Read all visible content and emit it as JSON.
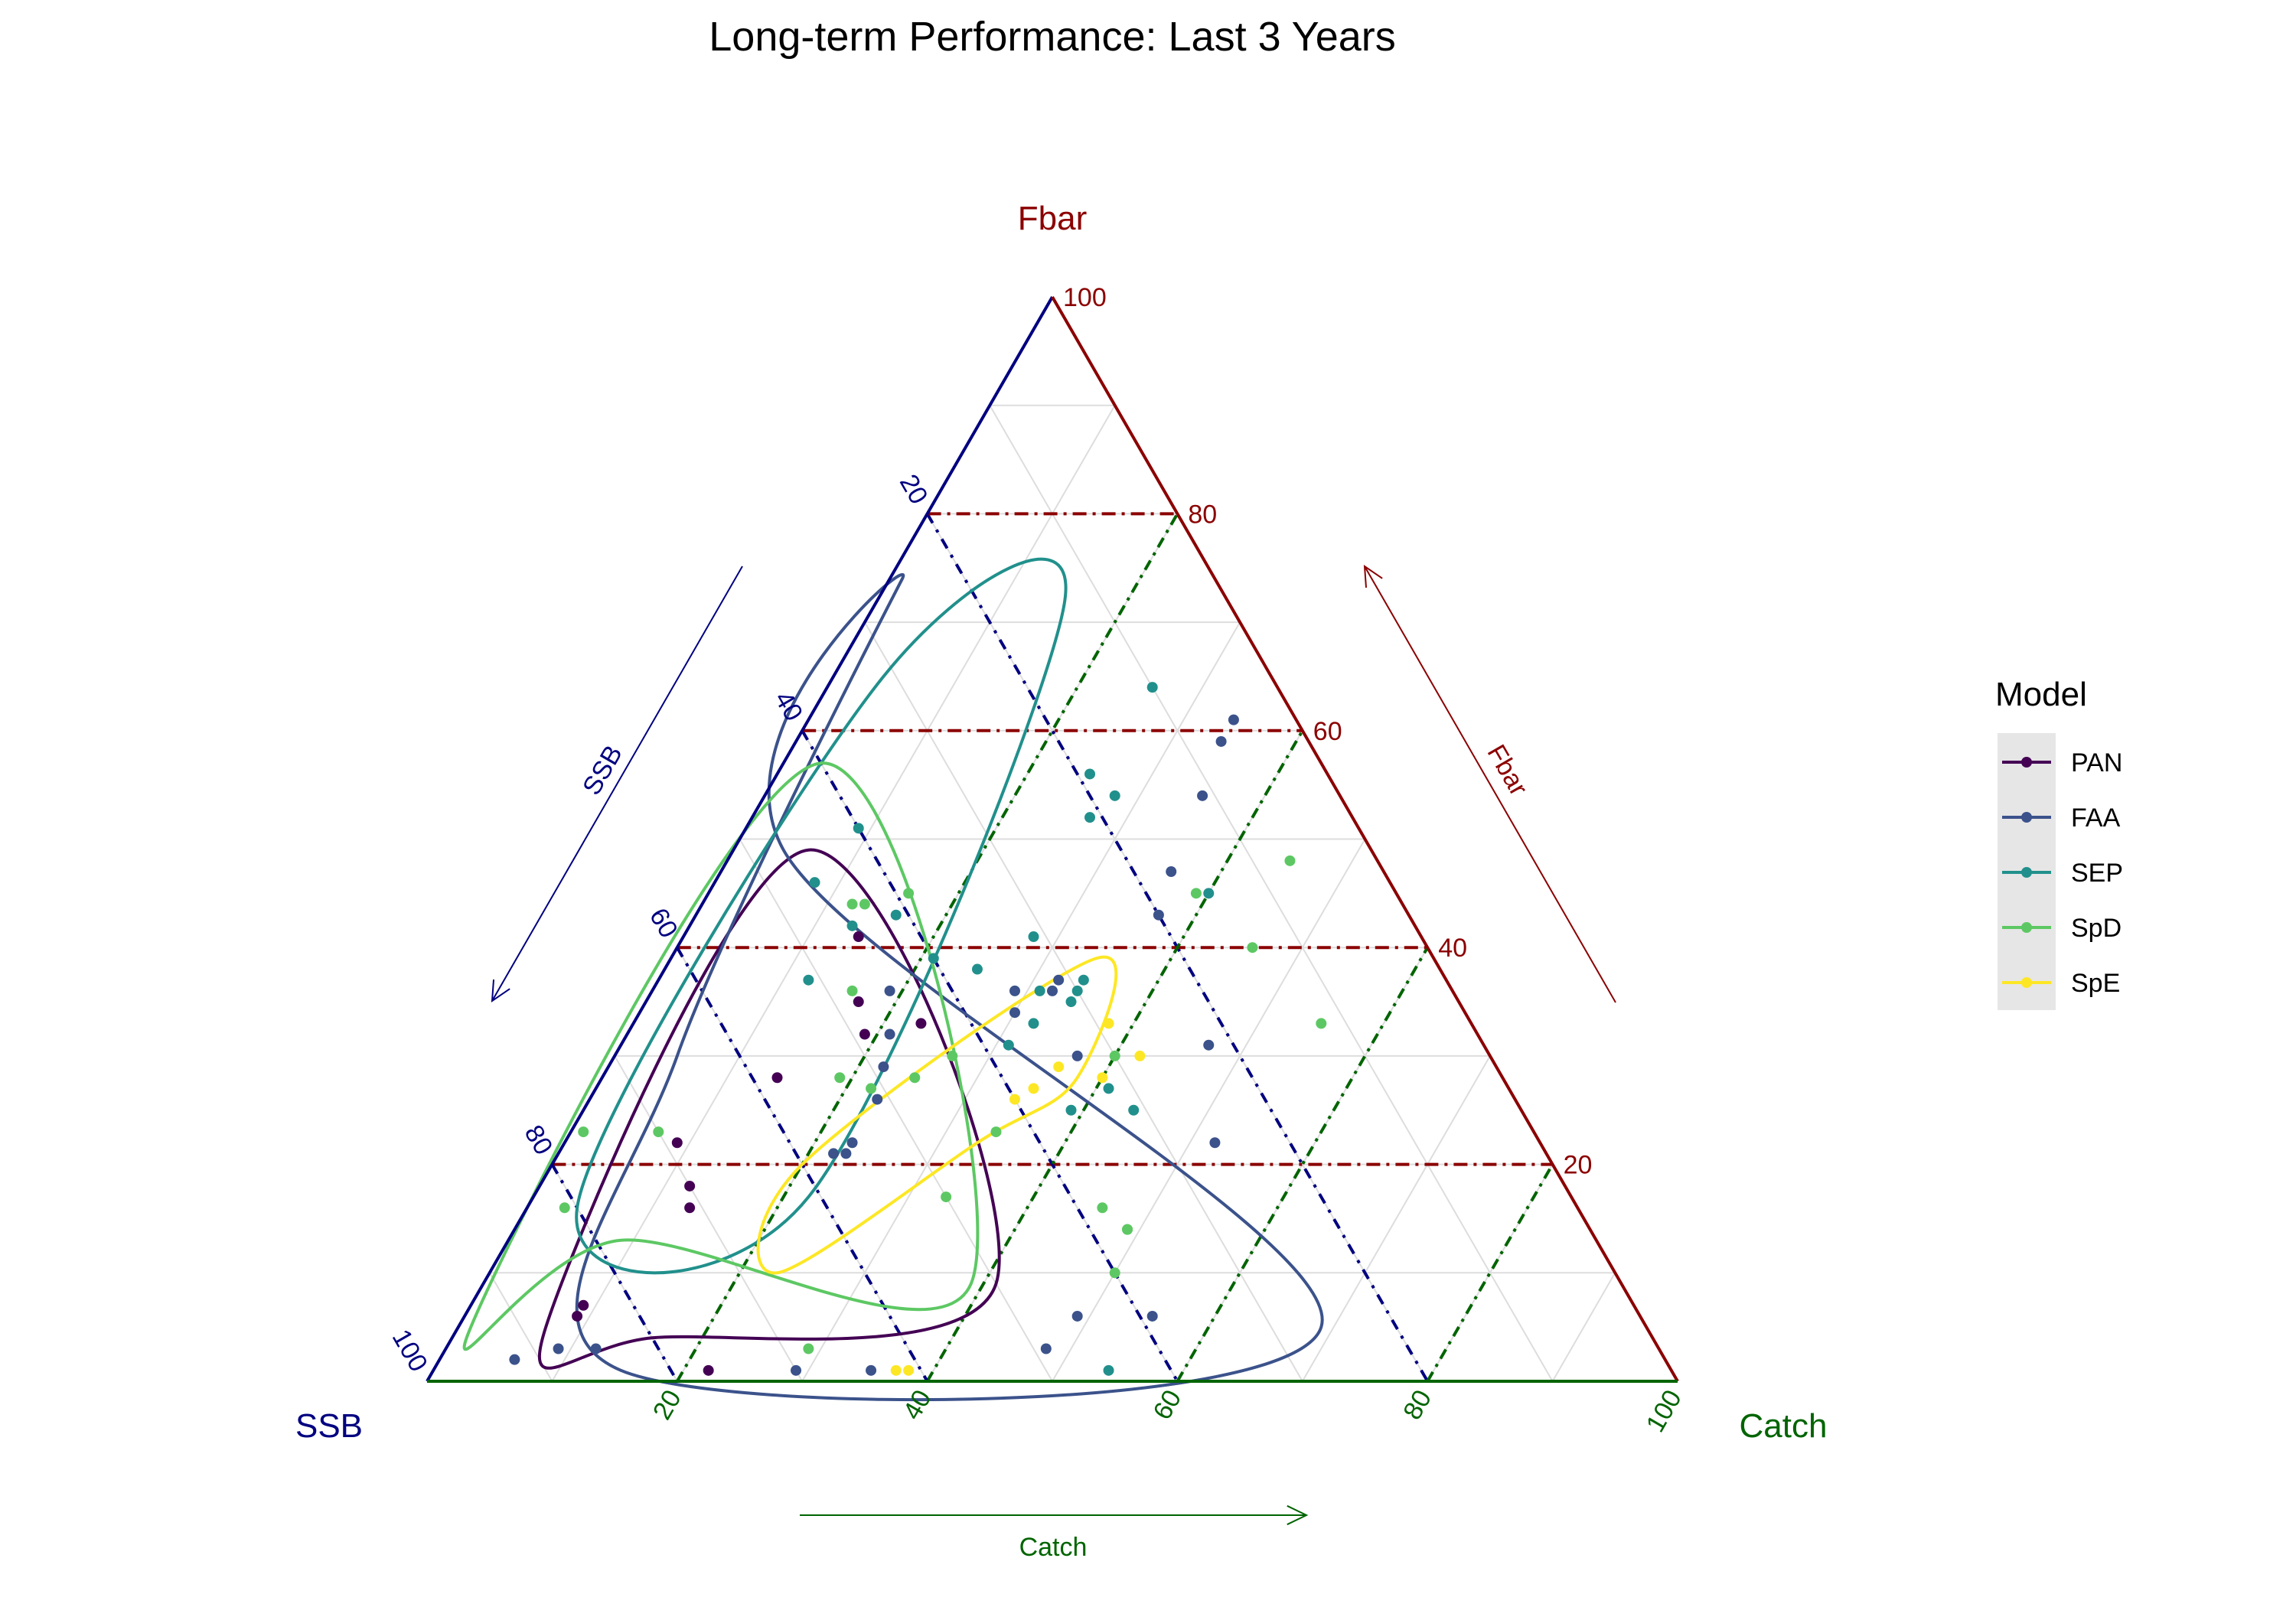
{
  "chart_data": {
    "type": "scatter",
    "subtype": "ternary",
    "title": "Long-term Performance: Last 3 Years",
    "axes": {
      "top": {
        "name": "Fbar",
        "color": "#8B0000",
        "arrow_label": "Fbar"
      },
      "left": {
        "name": "SSB",
        "color": "#000080",
        "arrow_label": "SSB"
      },
      "right": {
        "name": "Catch",
        "color": "#006400",
        "arrow_label": "Catch"
      }
    },
    "ticks": [
      "20",
      "40",
      "60",
      "80",
      "100"
    ],
    "grid": true,
    "legend": {
      "title": "Model",
      "placement": "right"
    },
    "series": [
      {
        "name": "PAN",
        "color": "#440154",
        "points": [
          [
            85,
            6,
            9
          ],
          [
            84,
            7,
            9
          ],
          [
            77,
            1,
            22
          ],
          [
            71,
            16,
            13
          ],
          [
            69,
            22,
            9
          ],
          [
            70,
            18,
            12
          ],
          [
            58,
            28,
            14
          ],
          [
            44,
            33,
            23
          ],
          [
            45,
            41,
            14
          ],
          [
            48,
            35,
            17
          ],
          [
            49,
            32,
            19
          ]
        ],
        "ellipse": [
          [
            80,
            4,
            16
          ],
          [
            50,
            9,
            41
          ],
          [
            45,
            49,
            6
          ],
          [
            88,
            5,
            7
          ]
        ]
      },
      {
        "name": "FAA",
        "color": "#3B528B",
        "points": [
          [
            92,
            2,
            6
          ],
          [
            88,
            3,
            9
          ],
          [
            85,
            3,
            12
          ],
          [
            70,
            1,
            29
          ],
          [
            64,
            1,
            35
          ],
          [
            45,
            6,
            49
          ],
          [
            49,
            3,
            48
          ],
          [
            39,
            6,
            55
          ],
          [
            26,
            22,
            52
          ],
          [
            22,
            31,
            47
          ],
          [
            33,
            30,
            37
          ],
          [
            36,
            34,
            30
          ],
          [
            47,
            32,
            21
          ],
          [
            49,
            29,
            22
          ],
          [
            51,
            26,
            23
          ],
          [
            55,
            22,
            23
          ],
          [
            56,
            21,
            23
          ],
          [
            57,
            21,
            22
          ],
          [
            45,
            36,
            19
          ],
          [
            32,
            36,
            32
          ],
          [
            31,
            37,
            32
          ],
          [
            35,
            36,
            29
          ],
          [
            17,
            47,
            36
          ],
          [
            20,
            43,
            37
          ],
          [
            11,
            54,
            35
          ],
          [
            7,
            59,
            34
          ],
          [
            5,
            61,
            34
          ]
        ],
        "ellipse": [
          [
            84,
            1,
            15
          ],
          [
            65,
            30,
            5
          ],
          [
            25,
            74,
            1
          ],
          [
            47,
            49,
            4
          ],
          [
            26,
            5,
            69
          ]
        ]
      },
      {
        "name": "SEP",
        "color": "#21908C",
        "points": [
          [
            40,
            51,
            9
          ],
          [
            51,
            37,
            12
          ],
          [
            45,
            42,
            13
          ],
          [
            41,
            43,
            16
          ],
          [
            40,
            39,
            21
          ],
          [
            37,
            38,
            25
          ],
          [
            33,
            36,
            31
          ],
          [
            35,
            33,
            32
          ],
          [
            31,
            41,
            28
          ],
          [
            29,
            37,
            34
          ],
          [
            30,
            36,
            34
          ],
          [
            31,
            35,
            34
          ],
          [
            19,
            56,
            25
          ],
          [
            18,
            54,
            28
          ],
          [
            10,
            64,
            26
          ],
          [
            21,
            52,
            27
          ],
          [
            36,
            25,
            39
          ],
          [
            32,
            27,
            41
          ],
          [
            31,
            25,
            44
          ],
          [
            38,
            31,
            31
          ],
          [
            46,
            46,
            8
          ],
          [
            45,
            1,
            54
          ],
          [
            15,
            45,
            40
          ]
        ],
        "ellipse": [
          [
            61,
            17,
            22
          ],
          [
            13,
            72,
            15
          ],
          [
            31,
            65,
            4
          ],
          [
            80,
            16,
            4
          ]
        ]
      },
      {
        "name": "SpD",
        "color": "#5DC863",
        "points": [
          [
            53,
            28,
            19
          ],
          [
            48,
            36,
            16
          ],
          [
            39,
            45,
            16
          ],
          [
            43,
            44,
            13
          ],
          [
            68,
            3,
            29
          ],
          [
            44,
            44,
            12
          ],
          [
            70,
            23,
            7
          ],
          [
            81,
            16,
            3
          ],
          [
            76,
            23,
            1
          ],
          [
            47,
            28,
            25
          ],
          [
            43,
            30,
            27
          ],
          [
            51,
            27,
            22
          ],
          [
            43,
            23,
            34
          ],
          [
            38,
            16,
            46
          ],
          [
            37,
            14,
            49
          ],
          [
            37,
            14,
            49
          ],
          [
            40,
            10,
            50
          ],
          [
            30,
            30,
            40
          ],
          [
            50,
            17,
            33
          ],
          [
            16,
            45,
            39
          ],
          [
            12,
            33,
            55
          ],
          [
            14,
            40,
            46
          ],
          [
            7,
            48,
            45
          ]
        ],
        "ellipse": [
          [
            78,
            13,
            9
          ],
          [
            52,
            9,
            39
          ],
          [
            40,
            57,
            3
          ],
          [
            94,
            5,
            1
          ]
        ]
      },
      {
        "name": "SpE",
        "color": "#FDE725",
        "points": [
          [
            40,
            26,
            34
          ],
          [
            35,
            29,
            36
          ],
          [
            38,
            27,
            35
          ],
          [
            29,
            33,
            38
          ],
          [
            32,
            28,
            40
          ],
          [
            28,
            30,
            42
          ],
          [
            62,
            1,
            37
          ],
          [
            61,
            1,
            38
          ]
        ],
        "ellipse": [
          [
            67,
            10,
            23
          ],
          [
            60,
            20,
            20
          ],
          [
            27,
            39,
            34
          ],
          [
            34,
            28,
            38
          ],
          [
            45,
            22,
            33
          ]
        ]
      }
    ],
    "reference_lines": {
      "fbar_levels": [
        "20",
        "40",
        "60",
        "80"
      ],
      "ssb_levels": [
        "20",
        "40",
        "60",
        "80"
      ],
      "catch_levels": [
        "20",
        "40",
        "60",
        "80"
      ]
    }
  }
}
